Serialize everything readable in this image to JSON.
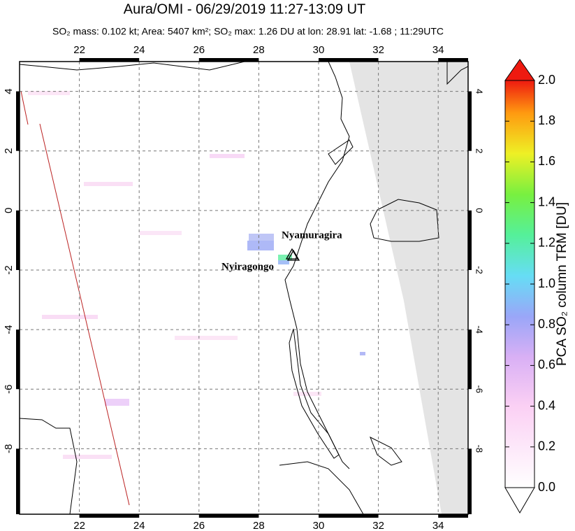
{
  "header": {
    "title": "Aura/OMI - 06/29/2019 11:27-13:09 UT",
    "subtitle": "SO₂ mass: 0.102 kt; Area: 5407 km²; SO₂ max: 1.26 DU at lon: 28.91 lat: -1.68 ; 11:29UTC"
  },
  "map": {
    "xlim": [
      20,
      35
    ],
    "ylim": [
      -10.2,
      5
    ],
    "xticks": [
      22,
      24,
      26,
      28,
      30,
      32,
      34
    ],
    "yticks": [
      4,
      2,
      0,
      -2,
      -4,
      -6,
      -8
    ],
    "grid": true,
    "volcanoes": [
      {
        "name": "Nyamuragira"
      },
      {
        "name": "Nyiragongo"
      }
    ]
  },
  "colorbar": {
    "label": "PCA SO₂ column TRM [DU]",
    "lim": [
      0,
      2
    ],
    "ticks": [
      {
        "value": 0,
        "label": "0.0"
      },
      {
        "value": 0.2,
        "label": "0.2"
      },
      {
        "value": 0.4,
        "label": "0.4"
      },
      {
        "value": 0.6,
        "label": "0.6"
      },
      {
        "value": 0.8,
        "label": "0.8"
      },
      {
        "value": 1,
        "label": "1.0"
      },
      {
        "value": 1.2,
        "label": "1.2"
      },
      {
        "value": 1.4,
        "label": "1.4"
      },
      {
        "value": 1.6,
        "label": "1.6"
      },
      {
        "value": 1.8,
        "label": "1.8"
      },
      {
        "value": 2,
        "label": "2.0"
      }
    ]
  }
}
